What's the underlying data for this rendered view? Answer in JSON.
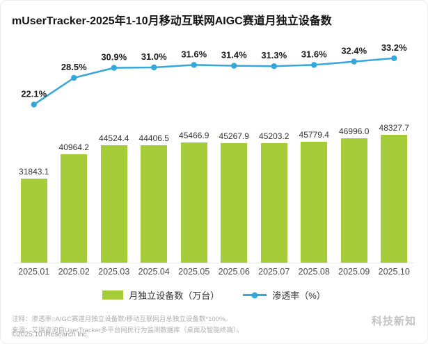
{
  "title": "mUserTracker-2025年1-10月移动互联网AIGC赛道月独立设备数",
  "chart_data": {
    "type": "bar+line",
    "categories": [
      "2025.01",
      "2025.02",
      "2025.03",
      "2025.04",
      "2025.05",
      "2025.06",
      "2025.07",
      "2025.08",
      "2025.09",
      "2025.10"
    ],
    "series": [
      {
        "name": "月独立设备数（万台）",
        "type": "bar",
        "color": "#a5cd39",
        "values": [
          31843.1,
          40964.2,
          44524.4,
          44406.5,
          45466.9,
          45267.9,
          45203.2,
          45779.4,
          46996.0,
          48327.7
        ]
      },
      {
        "name": "渗透率（%）",
        "type": "line",
        "color": "#34a7dc",
        "values": [
          22.1,
          28.5,
          30.9,
          31.0,
          31.6,
          31.4,
          31.3,
          31.6,
          32.4,
          33.2
        ]
      }
    ],
    "bar_ylim": [
      0,
      50000
    ],
    "line_ylim": [
      20,
      35
    ],
    "grid": false,
    "legend_position": "bottom",
    "xlabel": "",
    "ylabel": ""
  },
  "legend": {
    "bar_label": "月独立设备数（万台）",
    "line_label": "渗透率（%）"
  },
  "footnotes": {
    "note": "注释：渗透率=AIGC赛道月独立设备数/移动互联网月总独立设备数*100%。",
    "source": "来源：艾瑞咨询自UserTracker多平台网民行为监测数据库（桌面及智能终端）。",
    "copyright": "©2025.10 iResearch Inc.",
    "watermark": "科技新知"
  }
}
